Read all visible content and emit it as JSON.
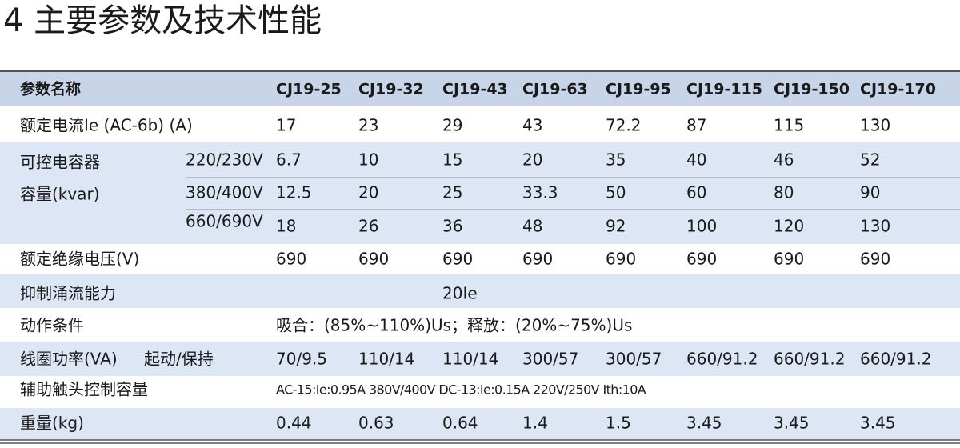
{
  "title": "4 主要参数及技术性能",
  "table": {
    "header": [
      "参数名称",
      "CJ19-25",
      "CJ19-32",
      "CJ19-43",
      "CJ19-63",
      "CJ19-95",
      "CJ19-115",
      "CJ19-150",
      "CJ19-170"
    ],
    "rows": [
      {
        "label": "额定电流Ie (AC-6b) (A)",
        "values": [
          "17",
          "23",
          "29",
          "43",
          "72.2",
          "87",
          "115",
          "130"
        ]
      },
      {
        "label_lines": [
          "可控电容器",
          "容量(kvar)"
        ],
        "subrows": [
          {
            "label": "220/230V",
            "values": [
              "6.7",
              "10",
              "15",
              "20",
              "35",
              "40",
              "46",
              "52"
            ]
          },
          {
            "label": "380/400V",
            "values": [
              "12.5",
              "20",
              "25",
              "33.3",
              "50",
              "60",
              "80",
              "90"
            ]
          },
          {
            "label": "660/690V",
            "values": [
              "18",
              "26",
              "36",
              "48",
              "92",
              "100",
              "120",
              "130"
            ]
          }
        ]
      },
      {
        "label": "额定绝缘电压(V)",
        "values": [
          "690",
          "690",
          "690",
          "690",
          "690",
          "690",
          "690",
          "690"
        ]
      },
      {
        "label": "抑制涌流能力",
        "text": "20Ie"
      },
      {
        "label": "动作条件",
        "text": "吸合：(85%~110%)Us；释放：(20%~75%)Us"
      },
      {
        "label": "线圈功率(VA)",
        "sublabel": "起动/保持",
        "values": [
          "70/9.5",
          "110/14",
          "110/14",
          "300/57",
          "300/57",
          "660/91.2",
          "660/91.2",
          "660/91.2"
        ]
      },
      {
        "label": "辅助触头控制容量",
        "text": "AC-15:Ie:0.95A  380V/400V  DC-13:Ie:0.15A  220V/250V  Ith:10A"
      },
      {
        "label": "重量(kg)",
        "values": [
          "0.44",
          "0.63",
          "0.64",
          "1.4",
          "1.5",
          "3.45",
          "3.45",
          "3.45"
        ]
      }
    ]
  }
}
